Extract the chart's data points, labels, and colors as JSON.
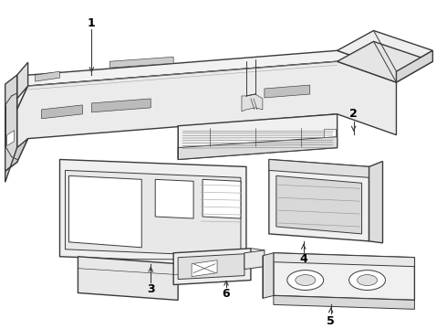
{
  "background_color": "#ffffff",
  "line_color": "#3a3a3a",
  "label_color": "#000000",
  "fig_width": 4.9,
  "fig_height": 3.6,
  "dpi": 100,
  "lw_main": 1.0,
  "lw_med": 0.7,
  "lw_thin": 0.45,
  "label_fontsize": 9
}
